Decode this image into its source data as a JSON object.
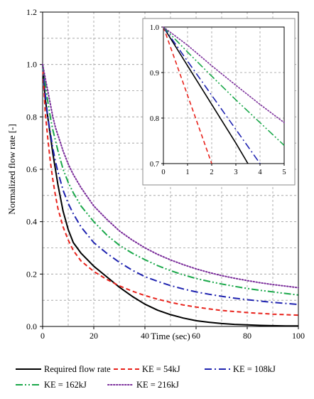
{
  "chart_data": [
    {
      "type": "line",
      "title": "",
      "xlabel": "Time (sec)",
      "ylabel": "Normalized flow rate [-]",
      "xlim": [
        0,
        100
      ],
      "ylim": [
        0,
        1.2
      ],
      "xticks": [
        "0",
        "20",
        "40",
        "60",
        "80",
        "100"
      ],
      "yticks": [
        "0.0",
        "0.2",
        "0.4",
        "0.6",
        "0.8",
        "1.0",
        "1.2"
      ],
      "grid": true,
      "legend_position": "bottom",
      "x": [
        0,
        1,
        2,
        3,
        4,
        5,
        6,
        8,
        10,
        12,
        15,
        20,
        25,
        30,
        35,
        40,
        45,
        50,
        55,
        60,
        65,
        70,
        75,
        80,
        85,
        90,
        95,
        100
      ],
      "series": [
        {
          "name": "Required flow rate",
          "color": "#000000",
          "dash": "solid",
          "values": [
            1.0,
            0.87,
            0.8,
            0.73,
            0.66,
            0.6,
            0.54,
            0.44,
            0.37,
            0.32,
            0.28,
            0.23,
            0.19,
            0.15,
            0.115,
            0.085,
            0.062,
            0.045,
            0.032,
            0.022,
            0.016,
            0.011,
            0.008,
            0.006,
            0.004,
            0.003,
            0.002,
            0.002
          ]
        },
        {
          "name": "KE = 54kJ",
          "color": "#e8221b",
          "dash": "dash",
          "values": [
            1.0,
            0.82,
            0.72,
            0.63,
            0.56,
            0.5,
            0.45,
            0.38,
            0.33,
            0.29,
            0.25,
            0.21,
            0.18,
            0.155,
            0.135,
            0.118,
            0.104,
            0.092,
            0.082,
            0.074,
            0.067,
            0.061,
            0.057,
            0.053,
            0.05,
            0.047,
            0.045,
            0.043
          ]
        },
        {
          "name": "KE = 108kJ",
          "color": "#1f23b0",
          "dash": "dashdot",
          "values": [
            1.0,
            0.89,
            0.8,
            0.74,
            0.68,
            0.63,
            0.59,
            0.52,
            0.47,
            0.43,
            0.38,
            0.32,
            0.28,
            0.245,
            0.215,
            0.19,
            0.172,
            0.156,
            0.143,
            0.132,
            0.123,
            0.115,
            0.108,
            0.102,
            0.097,
            0.092,
            0.088,
            0.084
          ]
        },
        {
          "name": "KE = 162kJ",
          "color": "#1aa84a",
          "dash": "dashdotdot",
          "values": [
            1.0,
            0.93,
            0.86,
            0.8,
            0.75,
            0.71,
            0.67,
            0.6,
            0.55,
            0.51,
            0.46,
            0.4,
            0.35,
            0.31,
            0.28,
            0.255,
            0.232,
            0.213,
            0.197,
            0.183,
            0.172,
            0.162,
            0.153,
            0.145,
            0.138,
            0.132,
            0.126,
            0.12
          ]
        },
        {
          "name": "KE = 216kJ",
          "color": "#7a2c9a",
          "dash": "dot",
          "values": [
            1.0,
            0.95,
            0.9,
            0.85,
            0.8,
            0.76,
            0.73,
            0.67,
            0.62,
            0.58,
            0.53,
            0.46,
            0.41,
            0.365,
            0.33,
            0.3,
            0.275,
            0.254,
            0.236,
            0.22,
            0.206,
            0.194,
            0.184,
            0.175,
            0.167,
            0.16,
            0.154,
            0.148
          ]
        }
      ]
    },
    {
      "type": "line",
      "title": "",
      "inset": true,
      "xlim": [
        0,
        5
      ],
      "ylim": [
        0.7,
        1.0
      ],
      "xticks": [
        "0",
        "1",
        "2",
        "3",
        "4",
        "5"
      ],
      "yticks": [
        "0.7",
        "0.8",
        "0.9",
        "1.0"
      ],
      "grid": true,
      "series": [
        {
          "name": "Required flow rate",
          "color": "#000000",
          "dash": "solid",
          "x": [
            0,
            1,
            2,
            3,
            3.5
          ],
          "values": [
            1.0,
            0.915,
            0.83,
            0.745,
            0.7
          ]
        },
        {
          "name": "KE = 54kJ",
          "color": "#e8221b",
          "dash": "dash",
          "x": [
            0,
            0.5,
            1,
            1.5,
            2.0
          ],
          "values": [
            1.0,
            0.925,
            0.85,
            0.775,
            0.7
          ]
        },
        {
          "name": "KE = 108kJ",
          "color": "#1f23b0",
          "dash": "dashdot",
          "x": [
            0,
            1,
            2,
            3,
            4.0
          ],
          "values": [
            1.0,
            0.925,
            0.85,
            0.775,
            0.7
          ]
        },
        {
          "name": "KE = 162kJ",
          "color": "#1aa84a",
          "dash": "dashdotdot",
          "x": [
            0,
            1,
            2,
            3,
            4,
            5
          ],
          "values": [
            1.0,
            0.945,
            0.892,
            0.84,
            0.79,
            0.74
          ]
        },
        {
          "name": "KE = 216kJ",
          "color": "#7a2c9a",
          "dash": "dot",
          "x": [
            0,
            1,
            2,
            3,
            4,
            5
          ],
          "values": [
            1.0,
            0.96,
            0.915,
            0.872,
            0.83,
            0.79
          ]
        }
      ]
    }
  ]
}
